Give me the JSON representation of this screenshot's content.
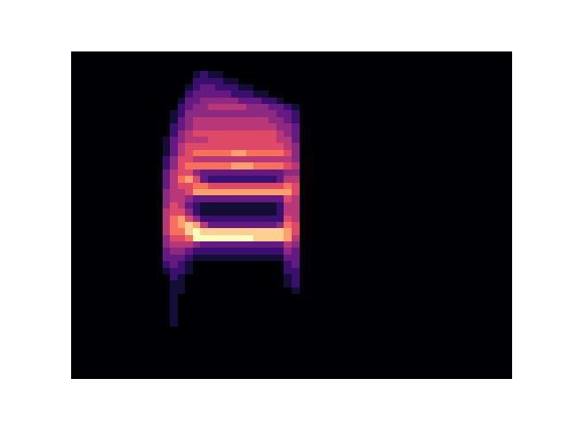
{
  "chart_data": {
    "type": "heatmap",
    "color": "magma",
    "tick_labels": false,
    "xlim": [
      0,
      58
    ],
    "ylim": [
      0,
      50
    ],
    "zlim": [
      0,
      10
    ],
    "x": [
      12,
      13,
      14,
      15,
      16,
      17,
      18,
      19,
      20,
      21,
      22,
      23,
      24,
      25,
      26,
      27,
      28,
      29
    ],
    "y": [
      46,
      45,
      44,
      43,
      42,
      41,
      40,
      39,
      38,
      37,
      36,
      35,
      34,
      33,
      32,
      31,
      30,
      29,
      28,
      27,
      26,
      25,
      24,
      23,
      22,
      21,
      20,
      19,
      18,
      17,
      16,
      15,
      14,
      13,
      12,
      11,
      10,
      9,
      8
    ],
    "z": [
      [
        0,
        0,
        0,
        0,
        1,
        2,
        1,
        1,
        0,
        0,
        0,
        0,
        0,
        0,
        0,
        0,
        0,
        0
      ],
      [
        0,
        0,
        0,
        0,
        2,
        2,
        2,
        2,
        1,
        1,
        0,
        0,
        0,
        0,
        0,
        0,
        0,
        0
      ],
      [
        0,
        0,
        0,
        1,
        2,
        3,
        3,
        2,
        2,
        2,
        1,
        1,
        0,
        0,
        0,
        0,
        0,
        0
      ],
      [
        0,
        0,
        0,
        2,
        3,
        3,
        3,
        3,
        3,
        2,
        2,
        2,
        1,
        1,
        0,
        0,
        0,
        0
      ],
      [
        0,
        0,
        1,
        3,
        3,
        4,
        4,
        4,
        4,
        4,
        3,
        3,
        3,
        2,
        2,
        1,
        0,
        0
      ],
      [
        0,
        0,
        2,
        3,
        4,
        4,
        5,
        5,
        5,
        5,
        5,
        4,
        4,
        4,
        3,
        3,
        2,
        1
      ],
      [
        0,
        1,
        2,
        4,
        4,
        4,
        4,
        4,
        4,
        4,
        4,
        4,
        4,
        4,
        4,
        3,
        3,
        2
      ],
      [
        0,
        1,
        3,
        4,
        5,
        5,
        5,
        5,
        5,
        5,
        5,
        5,
        5,
        5,
        4,
        4,
        3,
        2
      ],
      [
        0,
        2,
        3,
        4,
        5,
        5,
        5,
        5,
        5,
        5,
        5,
        5,
        5,
        5,
        5,
        4,
        4,
        3
      ],
      [
        0,
        2,
        4,
        5,
        6,
        6,
        6,
        6,
        6,
        6,
        6,
        6,
        6,
        6,
        6,
        5,
        4,
        3
      ],
      [
        1,
        3,
        4,
        5,
        5,
        5,
        6,
        6,
        6,
        6,
        6,
        6,
        6,
        6,
        6,
        5,
        5,
        3
      ],
      [
        1,
        3,
        5,
        6,
        6,
        6,
        6,
        6,
        6,
        6,
        6,
        6,
        6,
        6,
        6,
        6,
        5,
        4
      ],
      [
        1,
        3,
        5,
        6,
        7,
        7,
        7,
        7,
        7,
        8,
        8,
        7,
        7,
        7,
        7,
        7,
        6,
        4
      ],
      [
        2,
        4,
        6,
        6,
        5,
        5,
        5,
        5,
        5,
        5,
        5,
        5,
        5,
        5,
        5,
        5,
        5,
        4
      ],
      [
        2,
        4,
        6,
        7,
        7,
        7,
        7,
        7,
        7,
        8,
        8,
        8,
        7,
        7,
        7,
        7,
        6,
        5
      ],
      [
        3,
        5,
        6,
        6,
        4,
        3,
        3,
        3,
        3,
        3,
        3,
        3,
        3,
        3,
        3,
        3,
        4,
        4
      ],
      [
        3,
        5,
        7,
        8,
        6,
        3,
        2,
        2,
        2,
        2,
        2,
        2,
        2,
        2,
        2,
        3,
        5,
        5
      ],
      [
        3,
        5,
        6,
        6,
        7,
        7,
        6,
        6,
        6,
        6,
        6,
        6,
        6,
        6,
        6,
        6,
        7,
        6
      ],
      [
        4,
        5,
        5,
        6,
        8,
        8,
        8,
        8,
        8,
        8,
        8,
        8,
        8,
        8,
        8,
        8,
        8,
        6
      ],
      [
        4,
        5,
        5,
        4,
        3,
        3,
        3,
        3,
        3,
        3,
        3,
        3,
        3,
        3,
        3,
        3,
        6,
        5
      ],
      [
        4,
        6,
        5,
        3,
        2,
        1,
        1,
        1,
        1,
        1,
        1,
        1,
        1,
        1,
        1,
        2,
        5,
        5
      ],
      [
        5,
        6,
        6,
        4,
        2,
        1,
        1,
        1,
        1,
        1,
        1,
        1,
        1,
        1,
        1,
        2,
        5,
        5
      ],
      [
        5,
        7,
        8,
        6,
        4,
        2,
        2,
        2,
        2,
        2,
        2,
        2,
        2,
        2,
        2,
        2,
        6,
        5
      ],
      [
        5,
        7,
        8,
        9,
        8,
        5,
        3,
        3,
        3,
        3,
        3,
        3,
        3,
        3,
        3,
        4,
        7,
        6
      ],
      [
        5,
        7,
        7,
        9,
        10,
        9,
        9,
        9,
        9,
        9,
        9,
        9,
        9,
        9,
        9,
        9,
        8,
        6
      ],
      [
        4,
        6,
        6,
        7,
        10,
        10,
        10,
        10,
        10,
        10,
        10,
        10,
        9,
        9,
        9,
        9,
        8,
        5
      ],
      [
        4,
        5,
        5,
        5,
        4,
        3,
        3,
        3,
        3,
        3,
        3,
        3,
        3,
        3,
        3,
        3,
        5,
        4
      ],
      [
        3,
        4,
        4,
        3,
        2,
        2,
        2,
        2,
        2,
        2,
        2,
        2,
        2,
        2,
        2,
        2,
        4,
        3
      ],
      [
        3,
        3,
        3,
        2,
        1,
        1,
        1,
        1,
        1,
        1,
        1,
        1,
        1,
        1,
        1,
        1,
        3,
        3
      ],
      [
        2,
        3,
        2,
        1,
        0,
        0,
        0,
        0,
        0,
        0,
        0,
        0,
        0,
        0,
        0,
        0,
        2,
        3
      ],
      [
        1,
        2,
        2,
        1,
        0,
        0,
        0,
        0,
        0,
        0,
        0,
        0,
        0,
        0,
        0,
        0,
        2,
        2
      ],
      [
        0,
        2,
        1,
        0,
        0,
        0,
        0,
        0,
        0,
        0,
        0,
        0,
        0,
        0,
        0,
        0,
        1,
        2
      ],
      [
        0,
        1,
        1,
        0,
        0,
        0,
        0,
        0,
        0,
        0,
        0,
        0,
        0,
        0,
        0,
        0,
        1,
        2
      ],
      [
        0,
        1,
        1,
        0,
        0,
        0,
        0,
        0,
        0,
        0,
        0,
        0,
        0,
        0,
        0,
        0,
        0,
        1
      ],
      [
        0,
        1,
        0,
        0,
        0,
        0,
        0,
        0,
        0,
        0,
        0,
        0,
        0,
        0,
        0,
        0,
        0,
        0
      ],
      [
        0,
        1,
        0,
        0,
        0,
        0,
        0,
        0,
        0,
        0,
        0,
        0,
        0,
        0,
        0,
        0,
        0,
        0
      ],
      [
        0,
        1,
        0,
        0,
        0,
        0,
        0,
        0,
        0,
        0,
        0,
        0,
        0,
        0,
        0,
        0,
        0,
        0
      ],
      [
        0,
        1,
        0,
        0,
        0,
        0,
        0,
        0,
        0,
        0,
        0,
        0,
        0,
        0,
        0,
        0,
        0,
        0
      ],
      [
        0,
        1,
        0,
        0,
        0,
        0,
        0,
        0,
        0,
        0,
        0,
        0,
        0,
        0,
        0,
        0,
        0,
        0
      ]
    ]
  }
}
